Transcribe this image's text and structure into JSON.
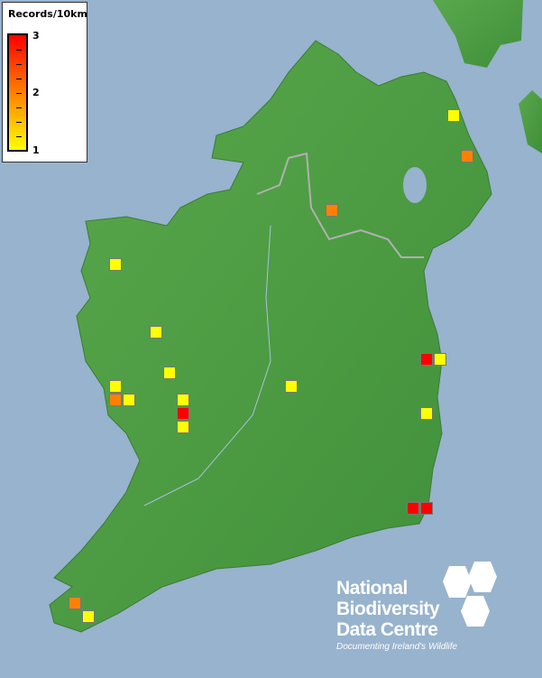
{
  "legend": {
    "title": "Records/10km",
    "max_label": "3",
    "mid_label": "2",
    "min_label": "1",
    "color_low": "#ffff00",
    "color_mid": "#ff8000",
    "color_high": "#ff0000"
  },
  "logo": {
    "line1": "National",
    "line2": "Biodiversity",
    "line3": "Data Centre",
    "tagline": "Documenting Ireland's Wildlife"
  },
  "colors": {
    "sea": "#97b3cd",
    "land": "#4f9e44"
  },
  "records": [
    1,
    2,
    2,
    1,
    1,
    1,
    1,
    2,
    1,
    1,
    3,
    1,
    1,
    3,
    1,
    1,
    3,
    3,
    2,
    1
  ]
}
